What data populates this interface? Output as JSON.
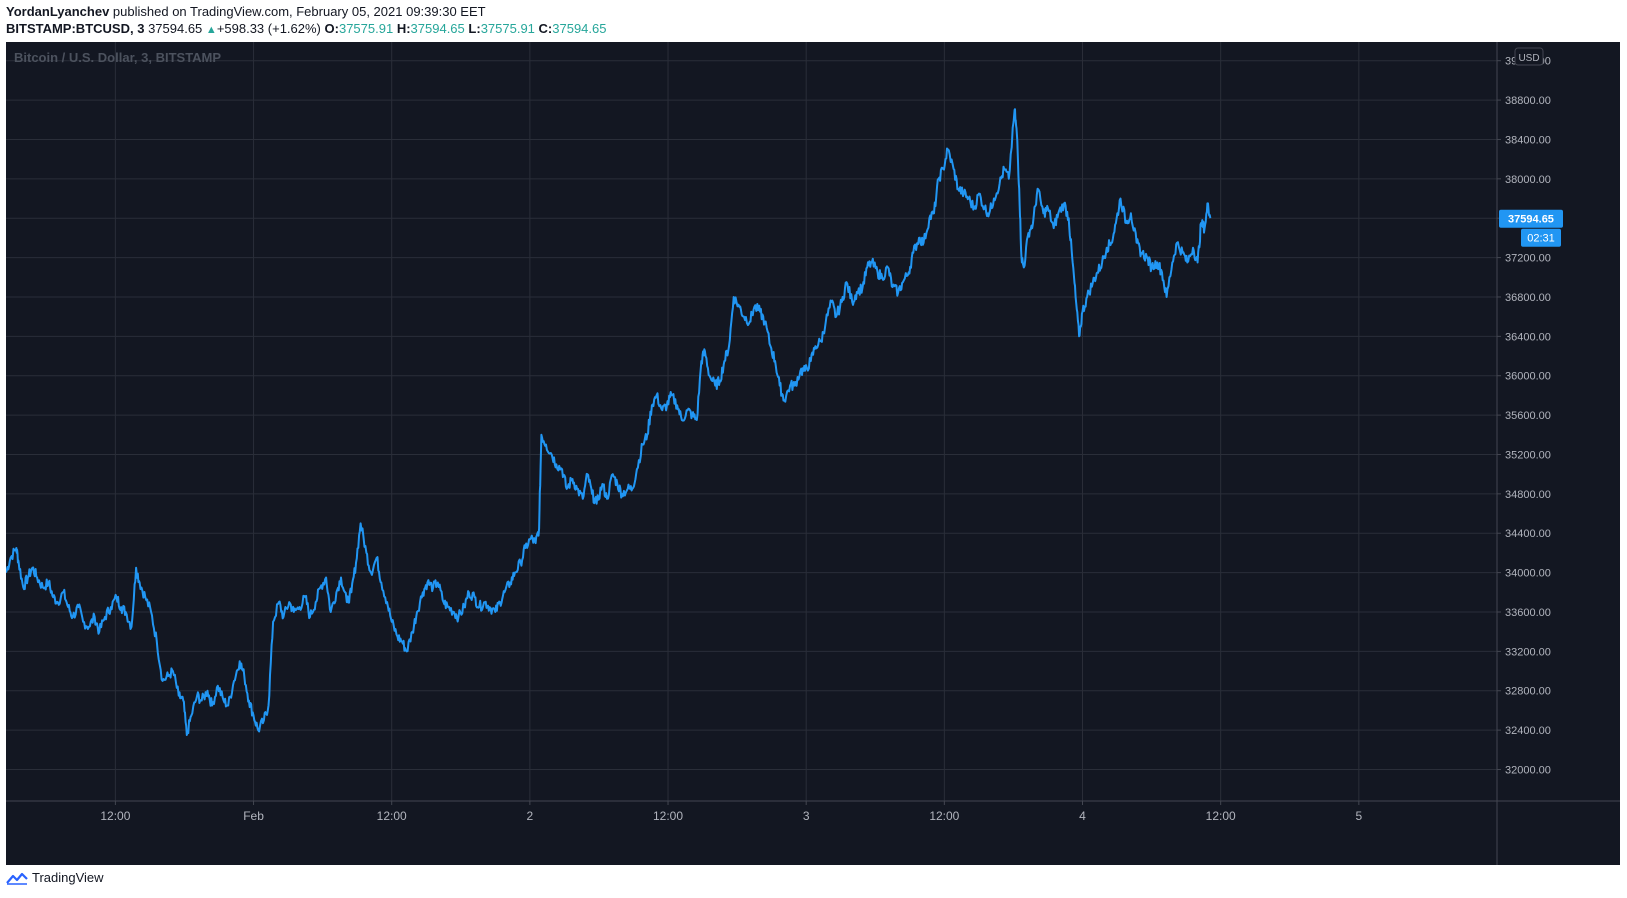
{
  "header": {
    "author": "YordanLyanchev",
    "published_text": " published on TradingView.com, February 05, 2021 09:39:30 EET",
    "symbol": "BITSTAMP:BTCUSD, 3",
    "price": "37594.65",
    "up_icon": "▲",
    "change": "+598.33 (+1.62%)",
    "o_label": "O:",
    "o_value": "37575.91",
    "h_label": "H:",
    "h_value": "37594.65",
    "l_label": "L:",
    "l_value": "37575.91",
    "c_label": "C:",
    "c_value": "37594.65"
  },
  "chart": {
    "watermark": "Bitcoin / U.S. Dollar, 3, BITSTAMP",
    "currency": "USD",
    "last_price_label": "37594.65",
    "countdown": "02:31",
    "colors": {
      "background": "#131722",
      "grid": "#363c4e",
      "line": "#2196f3",
      "axis_text": "#b2b5be",
      "tag": "#2196f3"
    }
  },
  "chart_data": {
    "type": "line",
    "title": "Bitcoin / U.S. Dollar, 3, BITSTAMP",
    "series": [],
    "y_ticks": [
      32000,
      32400,
      32800,
      33200,
      33600,
      34000,
      34400,
      34800,
      35200,
      35600,
      36000,
      36400,
      36800,
      37200,
      37600,
      38000,
      38400,
      38800,
      39200
    ],
    "y_tick_labels": [
      "32000.00",
      "32400.00",
      "32800.00",
      "33200.00",
      "33600.00",
      "34000.00",
      "34400.00",
      "34800.00",
      "35200.00",
      "35600.00",
      "36000.00",
      "36400.00",
      "36800.00",
      "37200.00",
      "37600.00",
      "38000.00",
      "38400.00",
      "38800.00",
      "39200.00"
    ],
    "ylim": [
      31680,
      39390
    ],
    "x_ticks": [
      "12:00",
      "Feb",
      "12:00",
      "2",
      "12:00",
      "3",
      "12:00",
      "4",
      "12:00",
      "5"
    ],
    "x_tick_hours": [
      12,
      24,
      36,
      48,
      60,
      72,
      84,
      96,
      108,
      120
    ],
    "xlim_hours": [
      2.5,
      132
    ],
    "last_value": 37594.65,
    "grid": true,
    "price_points": [
      [
        2.5,
        34000
      ],
      [
        2.9,
        34150
      ],
      [
        3.4,
        34250
      ],
      [
        3.6,
        34100
      ],
      [
        4.0,
        33850
      ],
      [
        4.4,
        33950
      ],
      [
        4.8,
        34050
      ],
      [
        5.2,
        33950
      ],
      [
        5.7,
        33850
      ],
      [
        6.2,
        33900
      ],
      [
        6.6,
        33750
      ],
      [
        7.0,
        33700
      ],
      [
        7.5,
        33800
      ],
      [
        7.9,
        33650
      ],
      [
        8.3,
        33550
      ],
      [
        8.8,
        33650
      ],
      [
        9.2,
        33500
      ],
      [
        9.7,
        33450
      ],
      [
        10.2,
        33550
      ],
      [
        10.6,
        33400
      ],
      [
        11.1,
        33550
      ],
      [
        11.6,
        33650
      ],
      [
        12.1,
        33750
      ],
      [
        12.5,
        33650
      ],
      [
        12.9,
        33600
      ],
      [
        13.4,
        33450
      ],
      [
        13.8,
        34050
      ],
      [
        14.1,
        33900
      ],
      [
        14.6,
        33750
      ],
      [
        15.1,
        33600
      ],
      [
        15.6,
        33300
      ],
      [
        16.1,
        32900
      ],
      [
        16.6,
        32950
      ],
      [
        17.0,
        33000
      ],
      [
        17.5,
        32750
      ],
      [
        17.9,
        32700
      ],
      [
        18.2,
        32350
      ],
      [
        18.6,
        32550
      ],
      [
        19.1,
        32750
      ],
      [
        19.5,
        32700
      ],
      [
        20.0,
        32800
      ],
      [
        20.4,
        32650
      ],
      [
        20.9,
        32850
      ],
      [
        21.4,
        32700
      ],
      [
        21.8,
        32650
      ],
      [
        22.3,
        32900
      ],
      [
        22.8,
        33100
      ],
      [
        23.2,
        32950
      ],
      [
        23.6,
        32700
      ],
      [
        24.0,
        32550
      ],
      [
        24.4,
        32400
      ],
      [
        24.9,
        32500
      ],
      [
        25.3,
        32650
      ],
      [
        25.7,
        33500
      ],
      [
        26.2,
        33700
      ],
      [
        26.6,
        33550
      ],
      [
        27.1,
        33700
      ],
      [
        27.5,
        33600
      ],
      [
        28.0,
        33650
      ],
      [
        28.5,
        33750
      ],
      [
        28.9,
        33550
      ],
      [
        29.4,
        33700
      ],
      [
        29.8,
        33850
      ],
      [
        30.3,
        33950
      ],
      [
        30.7,
        33600
      ],
      [
        31.2,
        33800
      ],
      [
        31.6,
        33950
      ],
      [
        32.1,
        33700
      ],
      [
        32.5,
        33800
      ],
      [
        32.9,
        34100
      ],
      [
        33.3,
        34500
      ],
      [
        33.8,
        34200
      ],
      [
        34.2,
        34000
      ],
      [
        34.7,
        34150
      ],
      [
        35.1,
        33900
      ],
      [
        35.6,
        33700
      ],
      [
        36.0,
        33500
      ],
      [
        36.5,
        33350
      ],
      [
        36.9,
        33300
      ],
      [
        37.3,
        33200
      ],
      [
        37.8,
        33400
      ],
      [
        38.2,
        33600
      ],
      [
        38.7,
        33800
      ],
      [
        39.1,
        33900
      ],
      [
        39.6,
        33850
      ],
      [
        40.0,
        33900
      ],
      [
        40.5,
        33700
      ],
      [
        40.9,
        33650
      ],
      [
        41.4,
        33600
      ],
      [
        41.8,
        33550
      ],
      [
        42.3,
        33650
      ],
      [
        42.7,
        33800
      ],
      [
        43.2,
        33750
      ],
      [
        43.6,
        33650
      ],
      [
        44.1,
        33700
      ],
      [
        44.5,
        33650
      ],
      [
        45.0,
        33600
      ],
      [
        45.4,
        33700
      ],
      [
        45.8,
        33800
      ],
      [
        46.3,
        33900
      ],
      [
        46.7,
        34000
      ],
      [
        47.2,
        34100
      ],
      [
        47.6,
        34250
      ],
      [
        48.1,
        34350
      ],
      [
        48.5,
        34300
      ],
      [
        48.8,
        34450
      ],
      [
        49.0,
        35400
      ],
      [
        49.4,
        35300
      ],
      [
        49.9,
        35200
      ],
      [
        50.3,
        35100
      ],
      [
        50.8,
        35050
      ],
      [
        51.2,
        34850
      ],
      [
        51.7,
        34950
      ],
      [
        52.1,
        34850
      ],
      [
        52.6,
        34750
      ],
      [
        53.0,
        35000
      ],
      [
        53.4,
        34800
      ],
      [
        53.8,
        34700
      ],
      [
        54.3,
        34900
      ],
      [
        54.7,
        34750
      ],
      [
        55.2,
        35000
      ],
      [
        55.6,
        34900
      ],
      [
        56.0,
        34800
      ],
      [
        56.5,
        34850
      ],
      [
        56.9,
        34850
      ],
      [
        57.3,
        35050
      ],
      [
        57.8,
        35300
      ],
      [
        58.2,
        35400
      ],
      [
        58.6,
        35700
      ],
      [
        59.0,
        35800
      ],
      [
        59.5,
        35650
      ],
      [
        59.9,
        35700
      ],
      [
        60.3,
        35800
      ],
      [
        60.8,
        35700
      ],
      [
        61.2,
        35550
      ],
      [
        61.7,
        35650
      ],
      [
        62.1,
        35600
      ],
      [
        62.5,
        35550
      ],
      [
        62.9,
        36150
      ],
      [
        63.2,
        36250
      ],
      [
        63.6,
        36000
      ],
      [
        64.1,
        35900
      ],
      [
        64.5,
        35950
      ],
      [
        64.9,
        36150
      ],
      [
        65.3,
        36300
      ],
      [
        65.7,
        36800
      ],
      [
        66.2,
        36700
      ],
      [
        66.6,
        36600
      ],
      [
        67.1,
        36550
      ],
      [
        67.5,
        36700
      ],
      [
        68.0,
        36650
      ],
      [
        68.4,
        36550
      ],
      [
        68.9,
        36300
      ],
      [
        69.3,
        36150
      ],
      [
        69.7,
        35900
      ],
      [
        70.1,
        35750
      ],
      [
        70.6,
        35900
      ],
      [
        71.0,
        35900
      ],
      [
        71.5,
        36050
      ],
      [
        71.9,
        36050
      ],
      [
        72.4,
        36150
      ],
      [
        72.8,
        36300
      ],
      [
        73.3,
        36350
      ],
      [
        73.7,
        36550
      ],
      [
        74.2,
        36750
      ],
      [
        74.6,
        36600
      ],
      [
        75.1,
        36750
      ],
      [
        75.5,
        36950
      ],
      [
        76.0,
        36750
      ],
      [
        76.4,
        36850
      ],
      [
        76.9,
        36900
      ],
      [
        77.3,
        37100
      ],
      [
        77.7,
        37150
      ],
      [
        78.2,
        37050
      ],
      [
        78.6,
        37000
      ],
      [
        79.1,
        37100
      ],
      [
        79.5,
        36900
      ],
      [
        80.0,
        36850
      ],
      [
        80.4,
        36950
      ],
      [
        80.9,
        37050
      ],
      [
        81.3,
        37250
      ],
      [
        81.8,
        37400
      ],
      [
        82.2,
        37350
      ],
      [
        82.7,
        37600
      ],
      [
        83.1,
        37650
      ],
      [
        83.5,
        38000
      ],
      [
        83.9,
        38100
      ],
      [
        84.3,
        38300
      ],
      [
        84.8,
        38100
      ],
      [
        85.2,
        37900
      ],
      [
        85.7,
        37850
      ],
      [
        86.1,
        37800
      ],
      [
        86.6,
        37700
      ],
      [
        87.0,
        37850
      ],
      [
        87.5,
        37700
      ],
      [
        87.9,
        37650
      ],
      [
        88.3,
        37800
      ],
      [
        88.8,
        37950
      ],
      [
        89.2,
        38100
      ],
      [
        89.6,
        38000
      ],
      [
        90.1,
        38700
      ],
      [
        90.3,
        38450
      ],
      [
        90.5,
        37900
      ],
      [
        90.7,
        37200
      ],
      [
        90.9,
        37100
      ],
      [
        91.3,
        37450
      ],
      [
        91.7,
        37550
      ],
      [
        92.1,
        37900
      ],
      [
        92.6,
        37650
      ],
      [
        93.0,
        37700
      ],
      [
        93.5,
        37500
      ],
      [
        93.9,
        37650
      ],
      [
        94.4,
        37750
      ],
      [
        94.8,
        37600
      ],
      [
        95.1,
        37200
      ],
      [
        95.4,
        36800
      ],
      [
        95.7,
        36400
      ],
      [
        96.0,
        36650
      ],
      [
        96.4,
        36800
      ],
      [
        96.9,
        36950
      ],
      [
        97.3,
        37050
      ],
      [
        97.7,
        37150
      ],
      [
        98.1,
        37300
      ],
      [
        98.5,
        37350
      ],
      [
        98.9,
        37550
      ],
      [
        99.3,
        37800
      ],
      [
        99.8,
        37550
      ],
      [
        100.2,
        37650
      ],
      [
        100.7,
        37350
      ],
      [
        101.1,
        37250
      ],
      [
        101.6,
        37200
      ],
      [
        102.0,
        37100
      ],
      [
        102.5,
        37150
      ],
      [
        102.9,
        37050
      ],
      [
        103.3,
        36800
      ],
      [
        103.8,
        37150
      ],
      [
        104.2,
        37350
      ],
      [
        104.7,
        37250
      ],
      [
        105.1,
        37150
      ],
      [
        105.6,
        37300
      ],
      [
        106.0,
        37150
      ],
      [
        106.3,
        37550
      ],
      [
        106.6,
        37500
      ],
      [
        106.9,
        37750
      ],
      [
        107.1,
        37600
      ]
    ]
  },
  "footer": {
    "brand": "TradingView"
  }
}
